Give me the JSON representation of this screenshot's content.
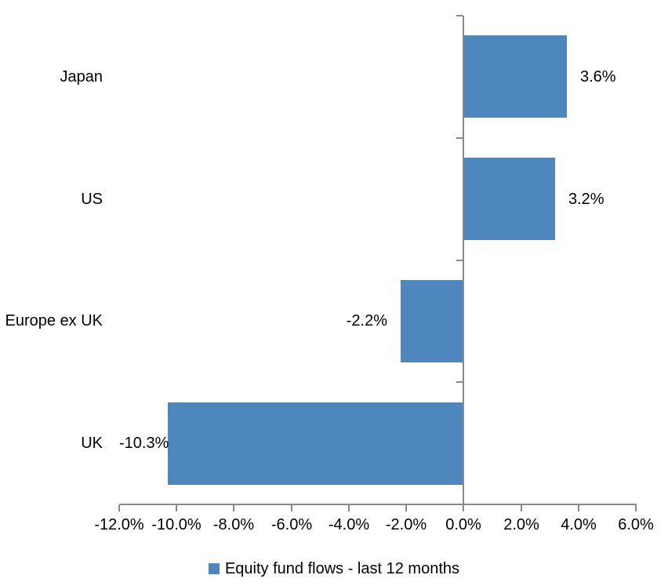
{
  "chart_data": {
    "type": "bar",
    "orientation": "horizontal",
    "categories": [
      "Japan",
      "US",
      "Europe ex UK",
      "UK"
    ],
    "values": [
      3.6,
      3.2,
      -2.2,
      -10.3
    ],
    "data_labels": [
      "3.6%",
      "3.2%",
      "-2.2%",
      "-10.3%"
    ],
    "x_ticks": [
      -12,
      -10,
      -8,
      -6,
      -4,
      -2,
      0,
      2,
      4,
      6
    ],
    "x_tick_labels": [
      "-12.0%",
      "-10.0%",
      "-8.0%",
      "-6.0%",
      "-4.0%",
      "-2.0%",
      "0.0%",
      "2.0%",
      "4.0%",
      "6.0%"
    ],
    "xlim": [
      -12,
      6
    ],
    "grid": false,
    "legend_position": "bottom",
    "legend": [
      "Equity fund flows - last 12 months"
    ],
    "bar_color": "#4E86BE",
    "axis_color": "#8A8A8A",
    "text_color": "#000000"
  }
}
